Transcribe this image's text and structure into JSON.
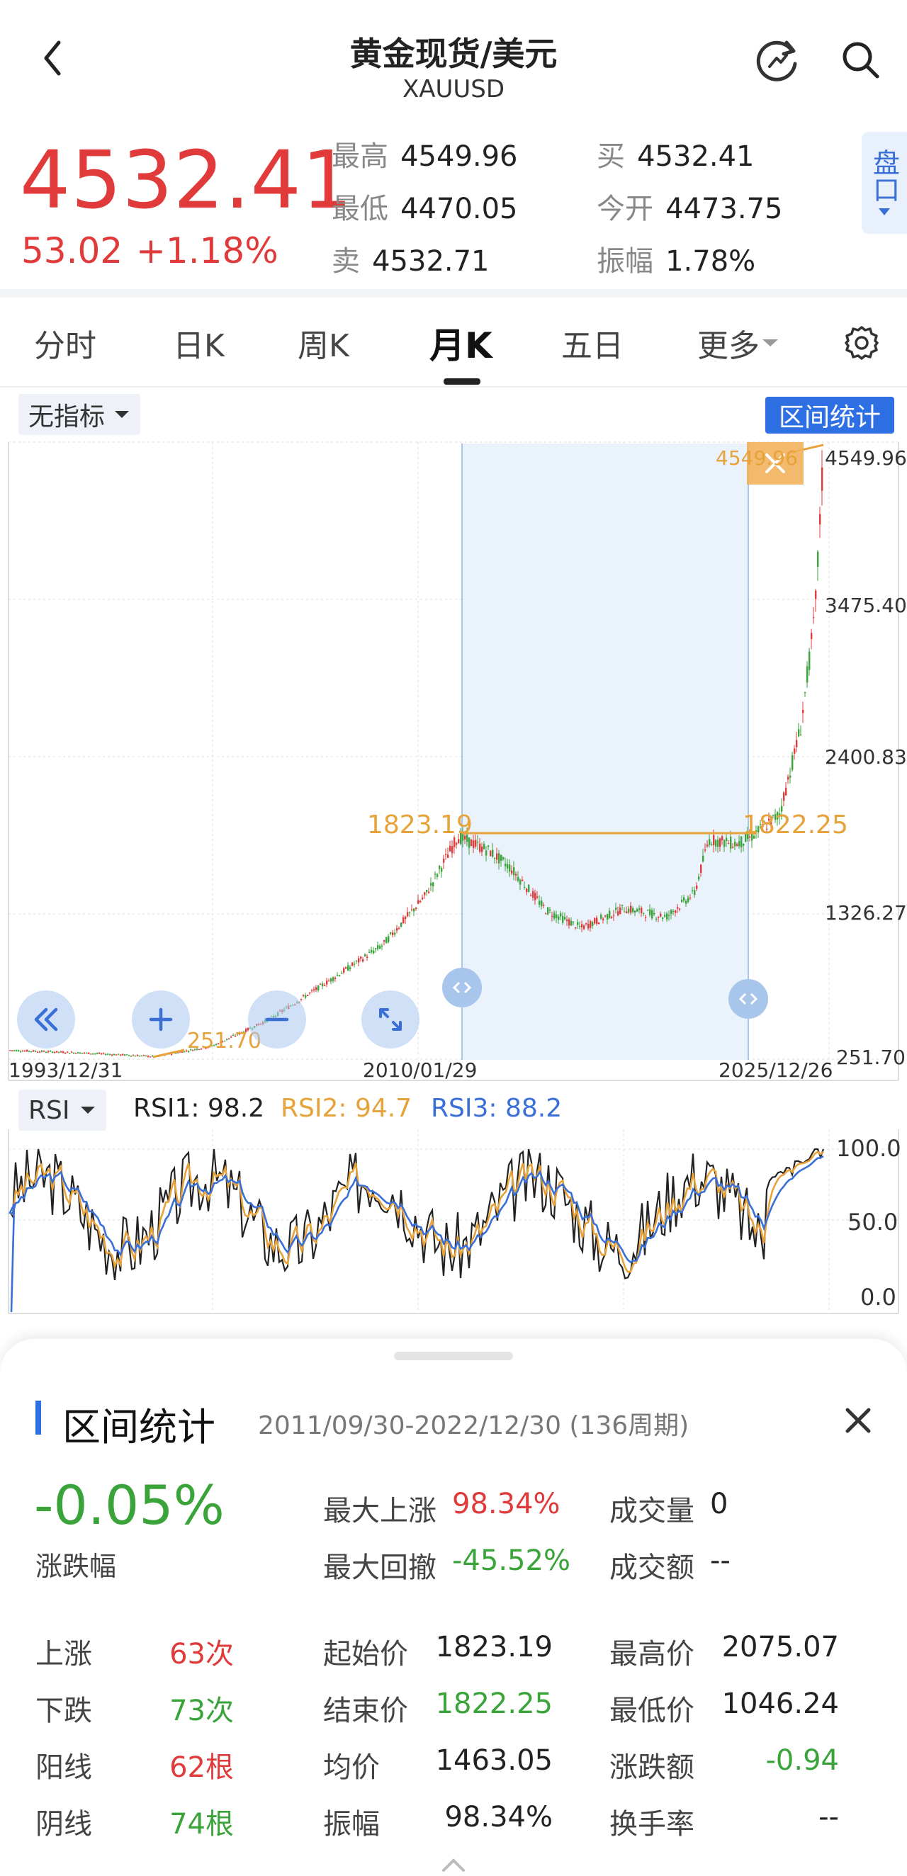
{
  "header": {
    "title": "黄金现货/美元",
    "symbol": "XAUUSD",
    "back_icon": "back-arrow-icon",
    "refresh_icon": "refresh-icon",
    "search_icon": "search-icon"
  },
  "quote": {
    "price": "4532.41",
    "change": "53.02",
    "change_pct": "+1.18%",
    "rows": [
      {
        "label": "最高",
        "value": "4549.96"
      },
      {
        "label": "最低",
        "value": "4470.05"
      },
      {
        "label": "卖",
        "value": "4532.71"
      },
      {
        "label": "买",
        "value": "4532.41"
      },
      {
        "label": "今开",
        "value": "4473.75"
      },
      {
        "label": "振幅",
        "value": "1.78%"
      }
    ],
    "pankou": "盘口"
  },
  "tabs": [
    "分时",
    "日K",
    "周K",
    "月K",
    "五日",
    "更多"
  ],
  "active_tab": "月K",
  "chart_controls": {
    "indicator": "无指标",
    "range_stats": "区间统计"
  },
  "chart_data": {
    "type": "candlestick",
    "y_ticks": [
      "4549.96",
      "3475.40",
      "2400.83",
      "1326.27",
      "251.70"
    ],
    "x_labels": [
      "1993/12/31",
      "2010/01/29",
      "2025/12/26"
    ],
    "annotations": {
      "range_start": "1823.19",
      "range_end": "1822.25",
      "max": "4549.96",
      "min": "251.70"
    },
    "rsi": {
      "label": "RSI",
      "rsi1": "RSI1: 98.2",
      "rsi2": "RSI2: 94.7",
      "rsi3": "RSI3: 88.2",
      "y_ticks": [
        "100.0",
        "50.0",
        "0.0"
      ]
    },
    "colors": {
      "up": "#e03a3a",
      "down": "#3aa33a",
      "rsi1": "#222222",
      "rsi2": "#e8a23a",
      "rsi3": "#3a6fd8"
    }
  },
  "stats": {
    "title": "区间统计",
    "range": "2011/09/30-2022/12/30 (136周期)",
    "change_pct": "-0.05%",
    "change_pct_label": "涨跌幅",
    "top_right": [
      {
        "label": "最大上涨",
        "value": "98.34%",
        "color": "red"
      },
      {
        "label": "成交量",
        "value": "0",
        "color": "black"
      },
      {
        "label": "最大回撤",
        "value": "-45.52%",
        "color": "green"
      },
      {
        "label": "成交额",
        "value": "--",
        "color": "black"
      }
    ],
    "grid": [
      [
        {
          "label": "上涨",
          "value": "63次",
          "color": "red"
        },
        {
          "label": "起始价",
          "value": "1823.19",
          "color": "black"
        },
        {
          "label": "最高价",
          "value": "2075.07",
          "color": "black"
        }
      ],
      [
        {
          "label": "下跌",
          "value": "73次",
          "color": "green"
        },
        {
          "label": "结束价",
          "value": "1822.25",
          "color": "green"
        },
        {
          "label": "最低价",
          "value": "1046.24",
          "color": "black"
        }
      ],
      [
        {
          "label": "阳线",
          "value": "62根",
          "color": "red"
        },
        {
          "label": "均价",
          "value": "1463.05",
          "color": "black"
        },
        {
          "label": "涨跌额",
          "value": "-0.94",
          "color": "green"
        }
      ],
      [
        {
          "label": "阴线",
          "value": "74根",
          "color": "green"
        },
        {
          "label": "振幅",
          "value": "98.34%",
          "color": "black"
        },
        {
          "label": "换手率",
          "value": "--",
          "color": "black"
        }
      ]
    ]
  }
}
